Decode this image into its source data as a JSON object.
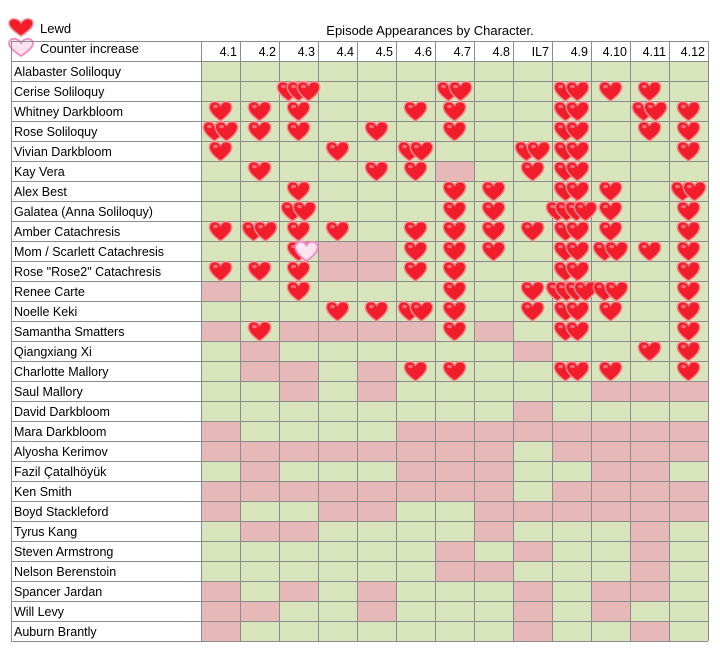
{
  "legend": {
    "lewd_label": "Lewd",
    "counter_label": "Counter increase",
    "colors": {
      "lewd": "#f21d2b",
      "counter": "#f6a7d2"
    }
  },
  "chart_data": {
    "type": "heatmap",
    "title": "Episode Appearances by Character.",
    "columns": [
      "4.1",
      "4.2",
      "4.3",
      "4.4",
      "4.5",
      "4.6",
      "4.7",
      "4.8",
      "IL7",
      "4.9",
      "4.10",
      "4.11",
      "4.12"
    ],
    "rows": [
      "Alabaster Soliloquy",
      "Cerise Soliloquy",
      "Whitney Darkbloom",
      "Rose Soliloquy",
      "Vivian Darkbloom",
      "Kay Vera",
      "Alex Best",
      "Galatea (Anna Soliloquy)",
      "Amber Catachresis",
      "Mom / Scarlett Catachresis",
      "Rose \"Rose2\" Catachresis",
      "Renee Carte",
      "Noelle Keki",
      "Samantha Smatters",
      "Qiangxiang Xi",
      "Charlotte Mallory",
      "Saul Mallory",
      "David Darkbloom",
      "Mara Darkbloom",
      "Alyosha Kerimov",
      "Fazil Çatalhöyük",
      "Ken Smith",
      "Boyd Stackleford",
      "Tyrus Kang",
      "Steven Armstrong",
      "Nelson Berenstoin",
      "Spancer Jardan",
      "Will Levy",
      "Auburn Brantly"
    ],
    "appearances": [
      [
        1,
        1,
        1,
        1,
        1,
        1,
        1,
        1,
        1,
        1,
        1,
        1,
        1
      ],
      [
        1,
        1,
        1,
        1,
        1,
        1,
        1,
        1,
        1,
        1,
        1,
        1,
        1
      ],
      [
        1,
        1,
        1,
        1,
        1,
        1,
        1,
        1,
        1,
        1,
        1,
        1,
        1
      ],
      [
        1,
        1,
        1,
        1,
        1,
        1,
        1,
        1,
        1,
        1,
        1,
        1,
        1
      ],
      [
        1,
        1,
        1,
        1,
        1,
        1,
        1,
        1,
        1,
        1,
        1,
        1,
        1
      ],
      [
        1,
        1,
        1,
        1,
        1,
        1,
        0,
        1,
        1,
        1,
        1,
        1,
        1
      ],
      [
        1,
        1,
        1,
        1,
        1,
        1,
        1,
        1,
        1,
        1,
        1,
        1,
        1
      ],
      [
        1,
        1,
        1,
        1,
        1,
        1,
        1,
        1,
        1,
        1,
        1,
        1,
        1
      ],
      [
        1,
        1,
        1,
        1,
        1,
        1,
        1,
        1,
        1,
        1,
        1,
        1,
        1
      ],
      [
        1,
        1,
        1,
        0,
        0,
        1,
        1,
        1,
        1,
        1,
        1,
        1,
        1
      ],
      [
        1,
        1,
        1,
        0,
        0,
        1,
        1,
        1,
        1,
        1,
        1,
        1,
        1
      ],
      [
        0,
        1,
        1,
        1,
        1,
        1,
        1,
        1,
        1,
        1,
        1,
        1,
        1
      ],
      [
        1,
        1,
        1,
        1,
        1,
        1,
        1,
        1,
        1,
        1,
        1,
        1,
        1
      ],
      [
        0,
        1,
        0,
        0,
        0,
        0,
        1,
        0,
        1,
        1,
        1,
        1,
        1
      ],
      [
        1,
        0,
        1,
        1,
        1,
        1,
        1,
        1,
        0,
        1,
        1,
        1,
        1
      ],
      [
        1,
        0,
        0,
        1,
        0,
        1,
        1,
        1,
        1,
        1,
        1,
        1,
        1
      ],
      [
        1,
        1,
        0,
        1,
        0,
        1,
        1,
        1,
        1,
        1,
        0,
        0,
        0
      ],
      [
        1,
        1,
        1,
        1,
        1,
        1,
        1,
        1,
        0,
        1,
        1,
        1,
        1
      ],
      [
        0,
        1,
        1,
        1,
        1,
        0,
        0,
        0,
        0,
        0,
        0,
        0,
        0
      ],
      [
        0,
        0,
        0,
        0,
        0,
        0,
        0,
        0,
        1,
        0,
        0,
        0,
        0
      ],
      [
        1,
        0,
        1,
        1,
        1,
        0,
        0,
        0,
        1,
        1,
        0,
        0,
        1
      ],
      [
        0,
        0,
        0,
        0,
        0,
        0,
        0,
        0,
        1,
        0,
        0,
        0,
        0
      ],
      [
        0,
        1,
        1,
        0,
        0,
        1,
        1,
        0,
        0,
        0,
        0,
        0,
        0
      ],
      [
        1,
        0,
        0,
        1,
        1,
        1,
        1,
        0,
        1,
        1,
        1,
        0,
        1
      ],
      [
        1,
        1,
        1,
        1,
        1,
        1,
        0,
        1,
        0,
        1,
        1,
        0,
        1
      ],
      [
        1,
        1,
        1,
        1,
        1,
        1,
        0,
        0,
        1,
        1,
        1,
        0,
        1
      ],
      [
        0,
        1,
        0,
        1,
        0,
        1,
        1,
        1,
        0,
        1,
        0,
        0,
        1
      ],
      [
        0,
        0,
        1,
        1,
        0,
        1,
        1,
        1,
        0,
        1,
        0,
        1,
        1
      ],
      [
        0,
        1,
        1,
        1,
        1,
        1,
        1,
        1,
        0,
        1,
        1,
        0,
        1
      ]
    ],
    "lewd_counts": [
      [
        0,
        0,
        0,
        0,
        0,
        0,
        0,
        0,
        0,
        0,
        0,
        0,
        0
      ],
      [
        0,
        0,
        3,
        0,
        0,
        0,
        2,
        0,
        0,
        2,
        1,
        1,
        0
      ],
      [
        1,
        1,
        1,
        0,
        0,
        1,
        1,
        0,
        0,
        2,
        0,
        2,
        1
      ],
      [
        2,
        1,
        1,
        0,
        1,
        0,
        1,
        0,
        0,
        2,
        0,
        1,
        1
      ],
      [
        1,
        0,
        0,
        1,
        0,
        2,
        0,
        0,
        2,
        2,
        0,
        0,
        1
      ],
      [
        0,
        1,
        0,
        0,
        1,
        1,
        0,
        0,
        1,
        2,
        0,
        0,
        0
      ],
      [
        0,
        0,
        1,
        0,
        0,
        0,
        1,
        1,
        0,
        2,
        1,
        0,
        2
      ],
      [
        0,
        0,
        2,
        0,
        0,
        0,
        1,
        1,
        0,
        4,
        1,
        0,
        1
      ],
      [
        1,
        2,
        1,
        1,
        0,
        1,
        1,
        1,
        1,
        2,
        1,
        0,
        1
      ],
      [
        0,
        0,
        1,
        0,
        0,
        1,
        1,
        1,
        0,
        2,
        2,
        1,
        1
      ],
      [
        1,
        1,
        1,
        0,
        0,
        1,
        1,
        0,
        0,
        2,
        0,
        0,
        1
      ],
      [
        0,
        0,
        1,
        0,
        0,
        0,
        1,
        0,
        1,
        4,
        2,
        0,
        1
      ],
      [
        0,
        0,
        0,
        1,
        1,
        2,
        1,
        0,
        1,
        2,
        1,
        0,
        1
      ],
      [
        0,
        1,
        0,
        0,
        0,
        0,
        1,
        0,
        0,
        2,
        0,
        0,
        1
      ],
      [
        0,
        0,
        0,
        0,
        0,
        0,
        0,
        0,
        0,
        0,
        0,
        1,
        1
      ],
      [
        0,
        0,
        0,
        0,
        0,
        1,
        1,
        0,
        0,
        2,
        1,
        0,
        1
      ],
      [
        0,
        0,
        0,
        0,
        0,
        0,
        0,
        0,
        0,
        0,
        0,
        0,
        0
      ],
      [
        0,
        0,
        0,
        0,
        0,
        0,
        0,
        0,
        0,
        0,
        0,
        0,
        0
      ],
      [
        0,
        0,
        0,
        0,
        0,
        0,
        0,
        0,
        0,
        0,
        0,
        0,
        0
      ],
      [
        0,
        0,
        0,
        0,
        0,
        0,
        0,
        0,
        0,
        0,
        0,
        0,
        0
      ],
      [
        0,
        0,
        0,
        0,
        0,
        0,
        0,
        0,
        0,
        0,
        0,
        0,
        0
      ],
      [
        0,
        0,
        0,
        0,
        0,
        0,
        0,
        0,
        0,
        0,
        0,
        0,
        0
      ],
      [
        0,
        0,
        0,
        0,
        0,
        0,
        0,
        0,
        0,
        0,
        0,
        0,
        0
      ],
      [
        0,
        0,
        0,
        0,
        0,
        0,
        0,
        0,
        0,
        0,
        0,
        0,
        0
      ],
      [
        0,
        0,
        0,
        0,
        0,
        0,
        0,
        0,
        0,
        0,
        0,
        0,
        0
      ],
      [
        0,
        0,
        0,
        0,
        0,
        0,
        0,
        0,
        0,
        0,
        0,
        0,
        0
      ],
      [
        0,
        0,
        0,
        0,
        0,
        0,
        0,
        0,
        0,
        0,
        0,
        0,
        0
      ],
      [
        0,
        0,
        0,
        0,
        0,
        0,
        0,
        0,
        0,
        0,
        0,
        0,
        0
      ],
      [
        0,
        0,
        0,
        0,
        0,
        0,
        0,
        0,
        0,
        0,
        0,
        0,
        0
      ]
    ],
    "counter_increases": [
      {
        "row": "Mom / Scarlett Catachresis",
        "column": "4.3",
        "count": 1
      }
    ],
    "colors": {
      "appeared": "#d8e4bc",
      "absent": "#e6b8b7",
      "grid": "#8c8c8c",
      "lewd": "#f21d2b",
      "counter": "#f6a7d2"
    },
    "legend_position": "top-left"
  }
}
